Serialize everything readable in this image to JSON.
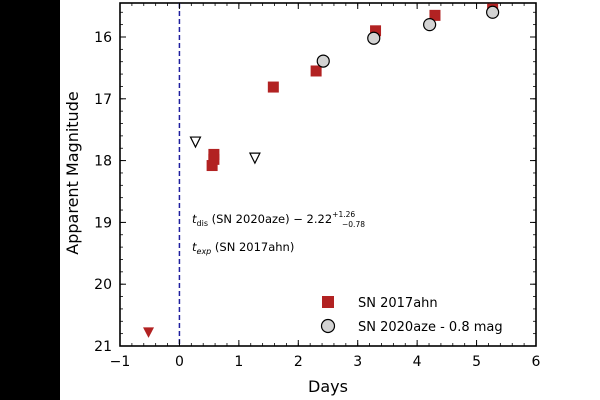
{
  "chart_data": {
    "type": "scatter",
    "xlabel": "Days",
    "ylabel": "Apparent Magnitude",
    "xlim": [
      -1,
      6
    ],
    "ylim": [
      21,
      15.45
    ],
    "y_inverted": true,
    "x_ticks": [
      -1,
      0,
      1,
      2,
      3,
      4,
      5,
      6
    ],
    "x_tick_labels": [
      "−1",
      "0",
      "1",
      "2",
      "3",
      "4",
      "5",
      "6"
    ],
    "y_ticks": [
      16,
      17,
      18,
      19,
      20,
      21
    ],
    "y_tick_labels": [
      "16",
      "17",
      "18",
      "19",
      "20",
      "21"
    ],
    "grid": false,
    "legend_position": "bottom-right",
    "vertical_line": {
      "x": 0,
      "style": "dashed",
      "color": "#1f1f9e"
    },
    "annotations": {
      "line1": {
        "pre": "t",
        "sub": "dis",
        "mid": " (SN 2020aze) − 2.22",
        "sup": "+1.26",
        "sub2": "−0.78"
      },
      "line2": {
        "pre": "t",
        "sub": "exp",
        "mid": " (SN 2017ahn)"
      }
    },
    "series": [
      {
        "name": "SN 2017ahn",
        "marker": "square",
        "color": "#b22222",
        "points": [
          {
            "x": 0.55,
            "y": 18.08
          },
          {
            "x": 0.58,
            "y": 17.98
          },
          {
            "x": 0.58,
            "y": 17.9
          },
          {
            "x": 1.58,
            "y": 16.81
          },
          {
            "x": 2.3,
            "y": 16.55
          },
          {
            "x": 3.3,
            "y": 15.9
          },
          {
            "x": 4.3,
            "y": 15.65
          },
          {
            "x": 5.27,
            "y": 15.55
          }
        ]
      },
      {
        "name": "SN 2020aze - 0.8 mag",
        "marker": "circle",
        "color": "#d3d3d3",
        "points": [
          {
            "x": 2.42,
            "y": 16.39
          },
          {
            "x": 3.27,
            "y": 16.02
          },
          {
            "x": 4.21,
            "y": 15.8
          },
          {
            "x": 5.27,
            "y": 15.6
          }
        ]
      },
      {
        "name": "",
        "marker": "triangle-down-open",
        "color": "#ffffff",
        "points": [
          {
            "x": 0.27,
            "y": 17.7
          },
          {
            "x": 1.27,
            "y": 17.96
          }
        ]
      },
      {
        "name": "",
        "marker": "triangle-down-filled",
        "color": "#b22222",
        "points": [
          {
            "x": -0.52,
            "y": 20.78
          }
        ]
      }
    ]
  }
}
